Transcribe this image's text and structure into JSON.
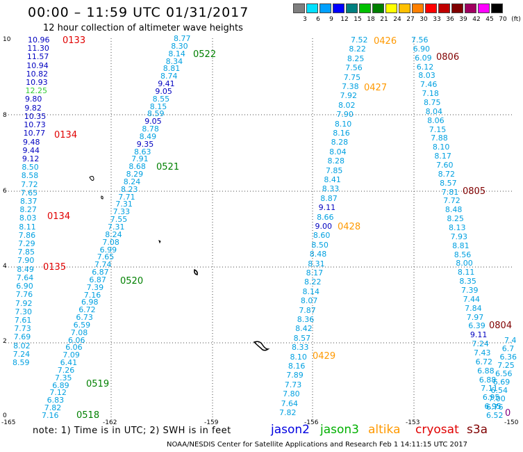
{
  "header": {
    "title": "00:00 – 11:59 UTC 01/31/2017",
    "subtitle": "12 hour collection of altimeter wave heights"
  },
  "colorbar": {
    "labels": [
      "3",
      "6",
      "9",
      "12",
      "15",
      "18",
      "21",
      "24",
      "27",
      "30",
      "33",
      "36",
      "39",
      "42",
      "45",
      "70",
      "(ft)"
    ],
    "colors": [
      "#7f7f7f",
      "#00e0ff",
      "#00a0ff",
      "#0000ff",
      "#008080",
      "#00c000",
      "#008000",
      "#ffff00",
      "#ffc000",
      "#ff8000",
      "#ff0000",
      "#c00000",
      "#800000",
      "#a00060",
      "#ff00ff",
      "#000000"
    ]
  },
  "map": {
    "x_ticks": [
      "-165",
      "-162",
      "-159",
      "-156",
      "-153",
      "-150"
    ],
    "y_ticks": [
      "10",
      "8",
      "6",
      "4",
      "2",
      "0"
    ],
    "x_range": [
      -165,
      -150
    ],
    "y_range": [
      0,
      10
    ]
  },
  "tracks": [
    {
      "name": "left-jason2",
      "labels": [
        {
          "v": "10.96",
          "c": "#0000c0"
        },
        {
          "v": "11.30",
          "c": "#0000c0"
        },
        {
          "v": "11.57",
          "c": "#0000c0"
        },
        {
          "v": "10.94",
          "c": "#0000c0"
        },
        {
          "v": "10.82",
          "c": "#0000c0"
        },
        {
          "v": "10.93",
          "c": "#0000c0"
        },
        {
          "v": "12.25",
          "c": "#33cc33"
        },
        {
          "v": "9.80",
          "c": "#0000c0"
        },
        {
          "v": "9.82",
          "c": "#0000c0"
        },
        {
          "v": "10.35",
          "c": "#0000c0"
        },
        {
          "v": "10.73",
          "c": "#0000c0"
        },
        {
          "v": "10.77",
          "c": "#0000c0"
        },
        {
          "v": "9.48",
          "c": "#0000c0"
        },
        {
          "v": "9.44",
          "c": "#0000c0"
        },
        {
          "v": "9.12",
          "c": "#0000c0"
        },
        {
          "v": "8.50",
          "c": "#00a0e0"
        },
        {
          "v": "8.58",
          "c": "#00a0e0"
        },
        {
          "v": "7.72",
          "c": "#00a0e0"
        },
        {
          "v": "7.65",
          "c": "#00a0e0"
        },
        {
          "v": "8.37",
          "c": "#00a0e0"
        },
        {
          "v": "8.27",
          "c": "#00a0e0"
        },
        {
          "v": "8.03",
          "c": "#00a0e0"
        },
        {
          "v": "8.11",
          "c": "#00a0e0"
        },
        {
          "v": "7.86",
          "c": "#00a0e0"
        },
        {
          "v": "7.29",
          "c": "#00a0e0"
        },
        {
          "v": "7.85",
          "c": "#00a0e0"
        },
        {
          "v": "7.90",
          "c": "#00a0e0"
        },
        {
          "v": "8.49",
          "c": "#00a0e0"
        },
        {
          "v": "7.64",
          "c": "#00a0e0"
        },
        {
          "v": "6.90",
          "c": "#00a0e0"
        },
        {
          "v": "7.76",
          "c": "#00a0e0"
        },
        {
          "v": "7.92",
          "c": "#00a0e0"
        },
        {
          "v": "7.30",
          "c": "#00a0e0"
        },
        {
          "v": "7.61",
          "c": "#00a0e0"
        },
        {
          "v": "7.73",
          "c": "#00a0e0"
        },
        {
          "v": "7.69",
          "c": "#00a0e0"
        },
        {
          "v": "8.02",
          "c": "#00a0e0"
        },
        {
          "v": "7.24",
          "c": "#00a0e0"
        },
        {
          "v": "8.59",
          "c": "#00a0e0"
        }
      ]
    },
    {
      "name": "diag-jason3",
      "labels": [
        {
          "v": "8.77",
          "c": "#00a0e0"
        },
        {
          "v": "8.30",
          "c": "#00a0e0"
        },
        {
          "v": "8.14",
          "c": "#00a0e0"
        },
        {
          "v": "8.34",
          "c": "#00a0e0"
        },
        {
          "v": "8.81",
          "c": "#00a0e0"
        },
        {
          "v": "8.74",
          "c": "#00a0e0"
        },
        {
          "v": "9.41",
          "c": "#0000c0"
        },
        {
          "v": "9.05",
          "c": "#0000c0"
        },
        {
          "v": "8.55",
          "c": "#00a0e0"
        },
        {
          "v": "8.15",
          "c": "#00a0e0"
        },
        {
          "v": "8.59",
          "c": "#00a0e0"
        },
        {
          "v": "9.05",
          "c": "#0000c0"
        },
        {
          "v": "8.78",
          "c": "#00a0e0"
        },
        {
          "v": "8.49",
          "c": "#00a0e0"
        },
        {
          "v": "9.35",
          "c": "#0000c0"
        },
        {
          "v": "8.63",
          "c": "#00a0e0"
        },
        {
          "v": "7.91",
          "c": "#00a0e0"
        },
        {
          "v": "8.68",
          "c": "#00a0e0"
        },
        {
          "v": "8.29",
          "c": "#00a0e0"
        },
        {
          "v": "8.24",
          "c": "#00a0e0"
        },
        {
          "v": "8.23",
          "c": "#00a0e0"
        },
        {
          "v": "7.71",
          "c": "#00a0e0"
        },
        {
          "v": "7.31",
          "c": "#00a0e0"
        },
        {
          "v": "7.33",
          "c": "#00a0e0"
        },
        {
          "v": "7.55",
          "c": "#00a0e0"
        },
        {
          "v": "7.31",
          "c": "#00a0e0"
        },
        {
          "v": "8.24",
          "c": "#00a0e0"
        },
        {
          "v": "7.08",
          "c": "#00a0e0"
        },
        {
          "v": "6.99",
          "c": "#00a0e0"
        },
        {
          "v": "7.65",
          "c": "#00a0e0"
        },
        {
          "v": "7.74",
          "c": "#00a0e0"
        },
        {
          "v": "6.87",
          "c": "#00a0e0"
        },
        {
          "v": "6.87",
          "c": "#00a0e0"
        },
        {
          "v": "7.39",
          "c": "#00a0e0"
        },
        {
          "v": "7.16",
          "c": "#00a0e0"
        },
        {
          "v": "6.98",
          "c": "#00a0e0"
        },
        {
          "v": "6.72",
          "c": "#00a0e0"
        },
        {
          "v": "6.73",
          "c": "#00a0e0"
        },
        {
          "v": "6.59",
          "c": "#00a0e0"
        },
        {
          "v": "7.08",
          "c": "#00a0e0"
        },
        {
          "v": "6.06",
          "c": "#00a0e0"
        },
        {
          "v": "6.06",
          "c": "#00a0e0"
        },
        {
          "v": "7.09",
          "c": "#00a0e0"
        },
        {
          "v": "6.41",
          "c": "#00a0e0"
        },
        {
          "v": "7.26",
          "c": "#00a0e0"
        },
        {
          "v": "7.35",
          "c": "#00a0e0"
        },
        {
          "v": "6.89",
          "c": "#00a0e0"
        },
        {
          "v": "7.12",
          "c": "#00a0e0"
        },
        {
          "v": "6.83",
          "c": "#00a0e0"
        },
        {
          "v": "7.82",
          "c": "#00a0e0"
        },
        {
          "v": "7.16",
          "c": "#00a0e0"
        }
      ]
    },
    {
      "name": "mid-altika",
      "labels": [
        {
          "v": "7.52",
          "c": "#00a0e0"
        },
        {
          "v": "8.22",
          "c": "#00a0e0"
        },
        {
          "v": "8.25",
          "c": "#00a0e0"
        },
        {
          "v": "7.56",
          "c": "#00a0e0"
        },
        {
          "v": "7.75",
          "c": "#00a0e0"
        },
        {
          "v": "7.38",
          "c": "#00a0e0"
        },
        {
          "v": "7.92",
          "c": "#00a0e0"
        },
        {
          "v": "8.02",
          "c": "#00a0e0"
        },
        {
          "v": "7.90",
          "c": "#00a0e0"
        },
        {
          "v": "8.10",
          "c": "#00a0e0"
        },
        {
          "v": "8.16",
          "c": "#00a0e0"
        },
        {
          "v": "8.28",
          "c": "#00a0e0"
        },
        {
          "v": "8.04",
          "c": "#00a0e0"
        },
        {
          "v": "8.28",
          "c": "#00a0e0"
        },
        {
          "v": "7.85",
          "c": "#00a0e0"
        },
        {
          "v": "8.41",
          "c": "#00a0e0"
        },
        {
          "v": "8.33",
          "c": "#00a0e0"
        },
        {
          "v": "8.87",
          "c": "#00a0e0"
        },
        {
          "v": "9.11",
          "c": "#0000c0"
        },
        {
          "v": "8.66",
          "c": "#00a0e0"
        },
        {
          "v": "9.00",
          "c": "#0000c0"
        },
        {
          "v": "8.60",
          "c": "#00a0e0"
        },
        {
          "v": "8.50",
          "c": "#00a0e0"
        },
        {
          "v": "8.48",
          "c": "#00a0e0"
        },
        {
          "v": "8.31",
          "c": "#00a0e0"
        },
        {
          "v": "8.17",
          "c": "#00a0e0"
        },
        {
          "v": "8.22",
          "c": "#00a0e0"
        },
        {
          "v": "8.14",
          "c": "#00a0e0"
        },
        {
          "v": "8.07",
          "c": "#00a0e0"
        },
        {
          "v": "7.87",
          "c": "#00a0e0"
        },
        {
          "v": "8.36",
          "c": "#00a0e0"
        },
        {
          "v": "8.42",
          "c": "#00a0e0"
        },
        {
          "v": "8.57",
          "c": "#00a0e0"
        },
        {
          "v": "8.33",
          "c": "#00a0e0"
        },
        {
          "v": "8.10",
          "c": "#00a0e0"
        },
        {
          "v": "8.16",
          "c": "#00a0e0"
        },
        {
          "v": "7.89",
          "c": "#00a0e0"
        },
        {
          "v": "7.73",
          "c": "#00a0e0"
        },
        {
          "v": "7.80",
          "c": "#00a0e0"
        },
        {
          "v": "7.64",
          "c": "#00a0e0"
        },
        {
          "v": "7.82",
          "c": "#00a0e0"
        }
      ]
    },
    {
      "name": "right-s3a",
      "labels": [
        {
          "v": "7.56",
          "c": "#00a0e0"
        },
        {
          "v": "6.90",
          "c": "#00a0e0"
        },
        {
          "v": "6.09",
          "c": "#00a0e0"
        },
        {
          "v": "6.12",
          "c": "#00a0e0"
        },
        {
          "v": "8.03",
          "c": "#00a0e0"
        },
        {
          "v": "7.46",
          "c": "#00a0e0"
        },
        {
          "v": "7.18",
          "c": "#00a0e0"
        },
        {
          "v": "8.75",
          "c": "#00a0e0"
        },
        {
          "v": "8.04",
          "c": "#00a0e0"
        },
        {
          "v": "8.06",
          "c": "#00a0e0"
        },
        {
          "v": "7.15",
          "c": "#00a0e0"
        },
        {
          "v": "7.88",
          "c": "#00a0e0"
        },
        {
          "v": "8.10",
          "c": "#00a0e0"
        },
        {
          "v": "8.17",
          "c": "#00a0e0"
        },
        {
          "v": "7.60",
          "c": "#00a0e0"
        },
        {
          "v": "8.72",
          "c": "#00a0e0"
        },
        {
          "v": "8.57",
          "c": "#00a0e0"
        },
        {
          "v": "7.81",
          "c": "#00a0e0"
        },
        {
          "v": "7.72",
          "c": "#00a0e0"
        },
        {
          "v": "8.48",
          "c": "#00a0e0"
        },
        {
          "v": "8.25",
          "c": "#00a0e0"
        },
        {
          "v": "8.13",
          "c": "#00a0e0"
        },
        {
          "v": "7.93",
          "c": "#00a0e0"
        },
        {
          "v": "8.81",
          "c": "#00a0e0"
        },
        {
          "v": "8.56",
          "c": "#00a0e0"
        },
        {
          "v": "8.00",
          "c": "#00a0e0"
        },
        {
          "v": "8.11",
          "c": "#00a0e0"
        },
        {
          "v": "8.35",
          "c": "#00a0e0"
        },
        {
          "v": "7.39",
          "c": "#00a0e0"
        },
        {
          "v": "7.44",
          "c": "#00a0e0"
        },
        {
          "v": "7.84",
          "c": "#00a0e0"
        },
        {
          "v": "7.97",
          "c": "#00a0e0"
        },
        {
          "v": "6.39",
          "c": "#00a0e0"
        },
        {
          "v": "9.11",
          "c": "#0000c0"
        },
        {
          "v": "7.24",
          "c": "#00a0e0"
        },
        {
          "v": "7.43",
          "c": "#00a0e0"
        },
        {
          "v": "6.72",
          "c": "#00a0e0"
        },
        {
          "v": "6.88",
          "c": "#00a0e0"
        },
        {
          "v": "6.88",
          "c": "#00a0e0"
        },
        {
          "v": "7.11",
          "c": "#00a0e0"
        },
        {
          "v": "6.95",
          "c": "#00a0e0"
        },
        {
          "v": "6.95",
          "c": "#00a0e0"
        },
        {
          "v": "6.52",
          "c": "#00a0e0"
        }
      ]
    },
    {
      "name": "far-right",
      "labels": [
        {
          "v": "7.4",
          "c": "#00a0e0"
        },
        {
          "v": "6.7",
          "c": "#00a0e0"
        },
        {
          "v": "6.36",
          "c": "#00a0e0"
        },
        {
          "v": "7.25",
          "c": "#00a0e0"
        },
        {
          "v": "6.56",
          "c": "#00a0e0"
        },
        {
          "v": "6.69",
          "c": "#00a0e0"
        },
        {
          "v": "6.54",
          "c": "#00a0e0"
        },
        {
          "v": "7.00",
          "c": "#00a0e0"
        },
        {
          "v": "6.76",
          "c": "#00a0e0"
        }
      ]
    }
  ],
  "pass_labels": [
    {
      "text": "0133",
      "color": "#e00000"
    },
    {
      "text": "0134",
      "color": "#e00000"
    },
    {
      "text": "0134",
      "color": "#e00000"
    },
    {
      "text": "0135",
      "color": "#e00000"
    },
    {
      "text": "0522",
      "color": "#008000"
    },
    {
      "text": "0521",
      "color": "#008000"
    },
    {
      "text": "0520",
      "color": "#008000"
    },
    {
      "text": "0519",
      "color": "#008000"
    },
    {
      "text": "0518",
      "color": "#008000"
    },
    {
      "text": "0426",
      "color": "#ff9900"
    },
    {
      "text": "0427",
      "color": "#ff9900"
    },
    {
      "text": "0428",
      "color": "#ff9900"
    },
    {
      "text": "0429",
      "color": "#ff9900"
    },
    {
      "text": "0806",
      "color": "#800000"
    },
    {
      "text": "0805",
      "color": "#800000"
    },
    {
      "text": "0804",
      "color": "#800000"
    },
    {
      "text": "0",
      "color": "#800080"
    }
  ],
  "footer": {
    "note": "note:  1) Time is in UTC;  2) SWH is in feet",
    "missions": [
      {
        "name": "jason2",
        "color": "#0000e0"
      },
      {
        "name": "jason3",
        "color": "#00b000"
      },
      {
        "name": "altika",
        "color": "#ff9900"
      },
      {
        "name": "cryosat",
        "color": "#e00000"
      },
      {
        "name": "s3a",
        "color": "#800000"
      }
    ],
    "credit": "NOAA/NESDIS Center for Satellite Applications and Research    Feb  1 14:11:15 UTC 2017"
  }
}
